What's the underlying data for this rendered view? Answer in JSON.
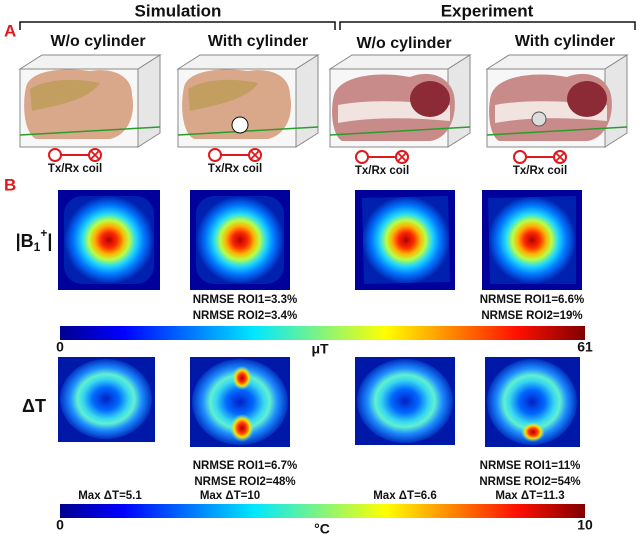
{
  "panel_labels": [
    "A",
    "B"
  ],
  "groups": [
    {
      "title": "Simulation",
      "columns": [
        "W/o cylinder",
        "With cylinder"
      ]
    },
    {
      "title": "Experiment",
      "columns": [
        "W/o cylinder",
        "With cylinder"
      ]
    }
  ],
  "coil_labels": [
    "Tx/Rx coil",
    "Tx/Rx coil",
    "Tx/Rx coil",
    "Tx/Rx coil"
  ],
  "b1_row": {
    "label": {
      "base": "|B",
      "sub": "1",
      "sup": "+",
      "end": "|"
    },
    "simulation_nrmse": [
      "NRMSE ROI1=3.3%",
      "NRMSE ROI2=3.4%"
    ],
    "experiment_nrmse": [
      "NRMSE ROI1=6.6%",
      "NRMSE ROI2=19%"
    ],
    "colorbar": {
      "min": 0,
      "unit": "μT",
      "max": 61
    }
  },
  "dt_row": {
    "label": "ΔT",
    "simulation_nrmse": [
      "NRMSE ROI1=6.7%",
      "NRMSE ROI2=48%"
    ],
    "experiment_nrmse": [
      "NRMSE ROI1=11%",
      "NRMSE ROI2=54%"
    ],
    "max_labels": [
      "Max ΔT=5.1",
      "Max ΔT=10",
      "Max ΔT=6.6",
      "Max ΔT=11.3"
    ],
    "colorbar": {
      "min": 0,
      "unit": "°C",
      "max": 10
    }
  }
}
